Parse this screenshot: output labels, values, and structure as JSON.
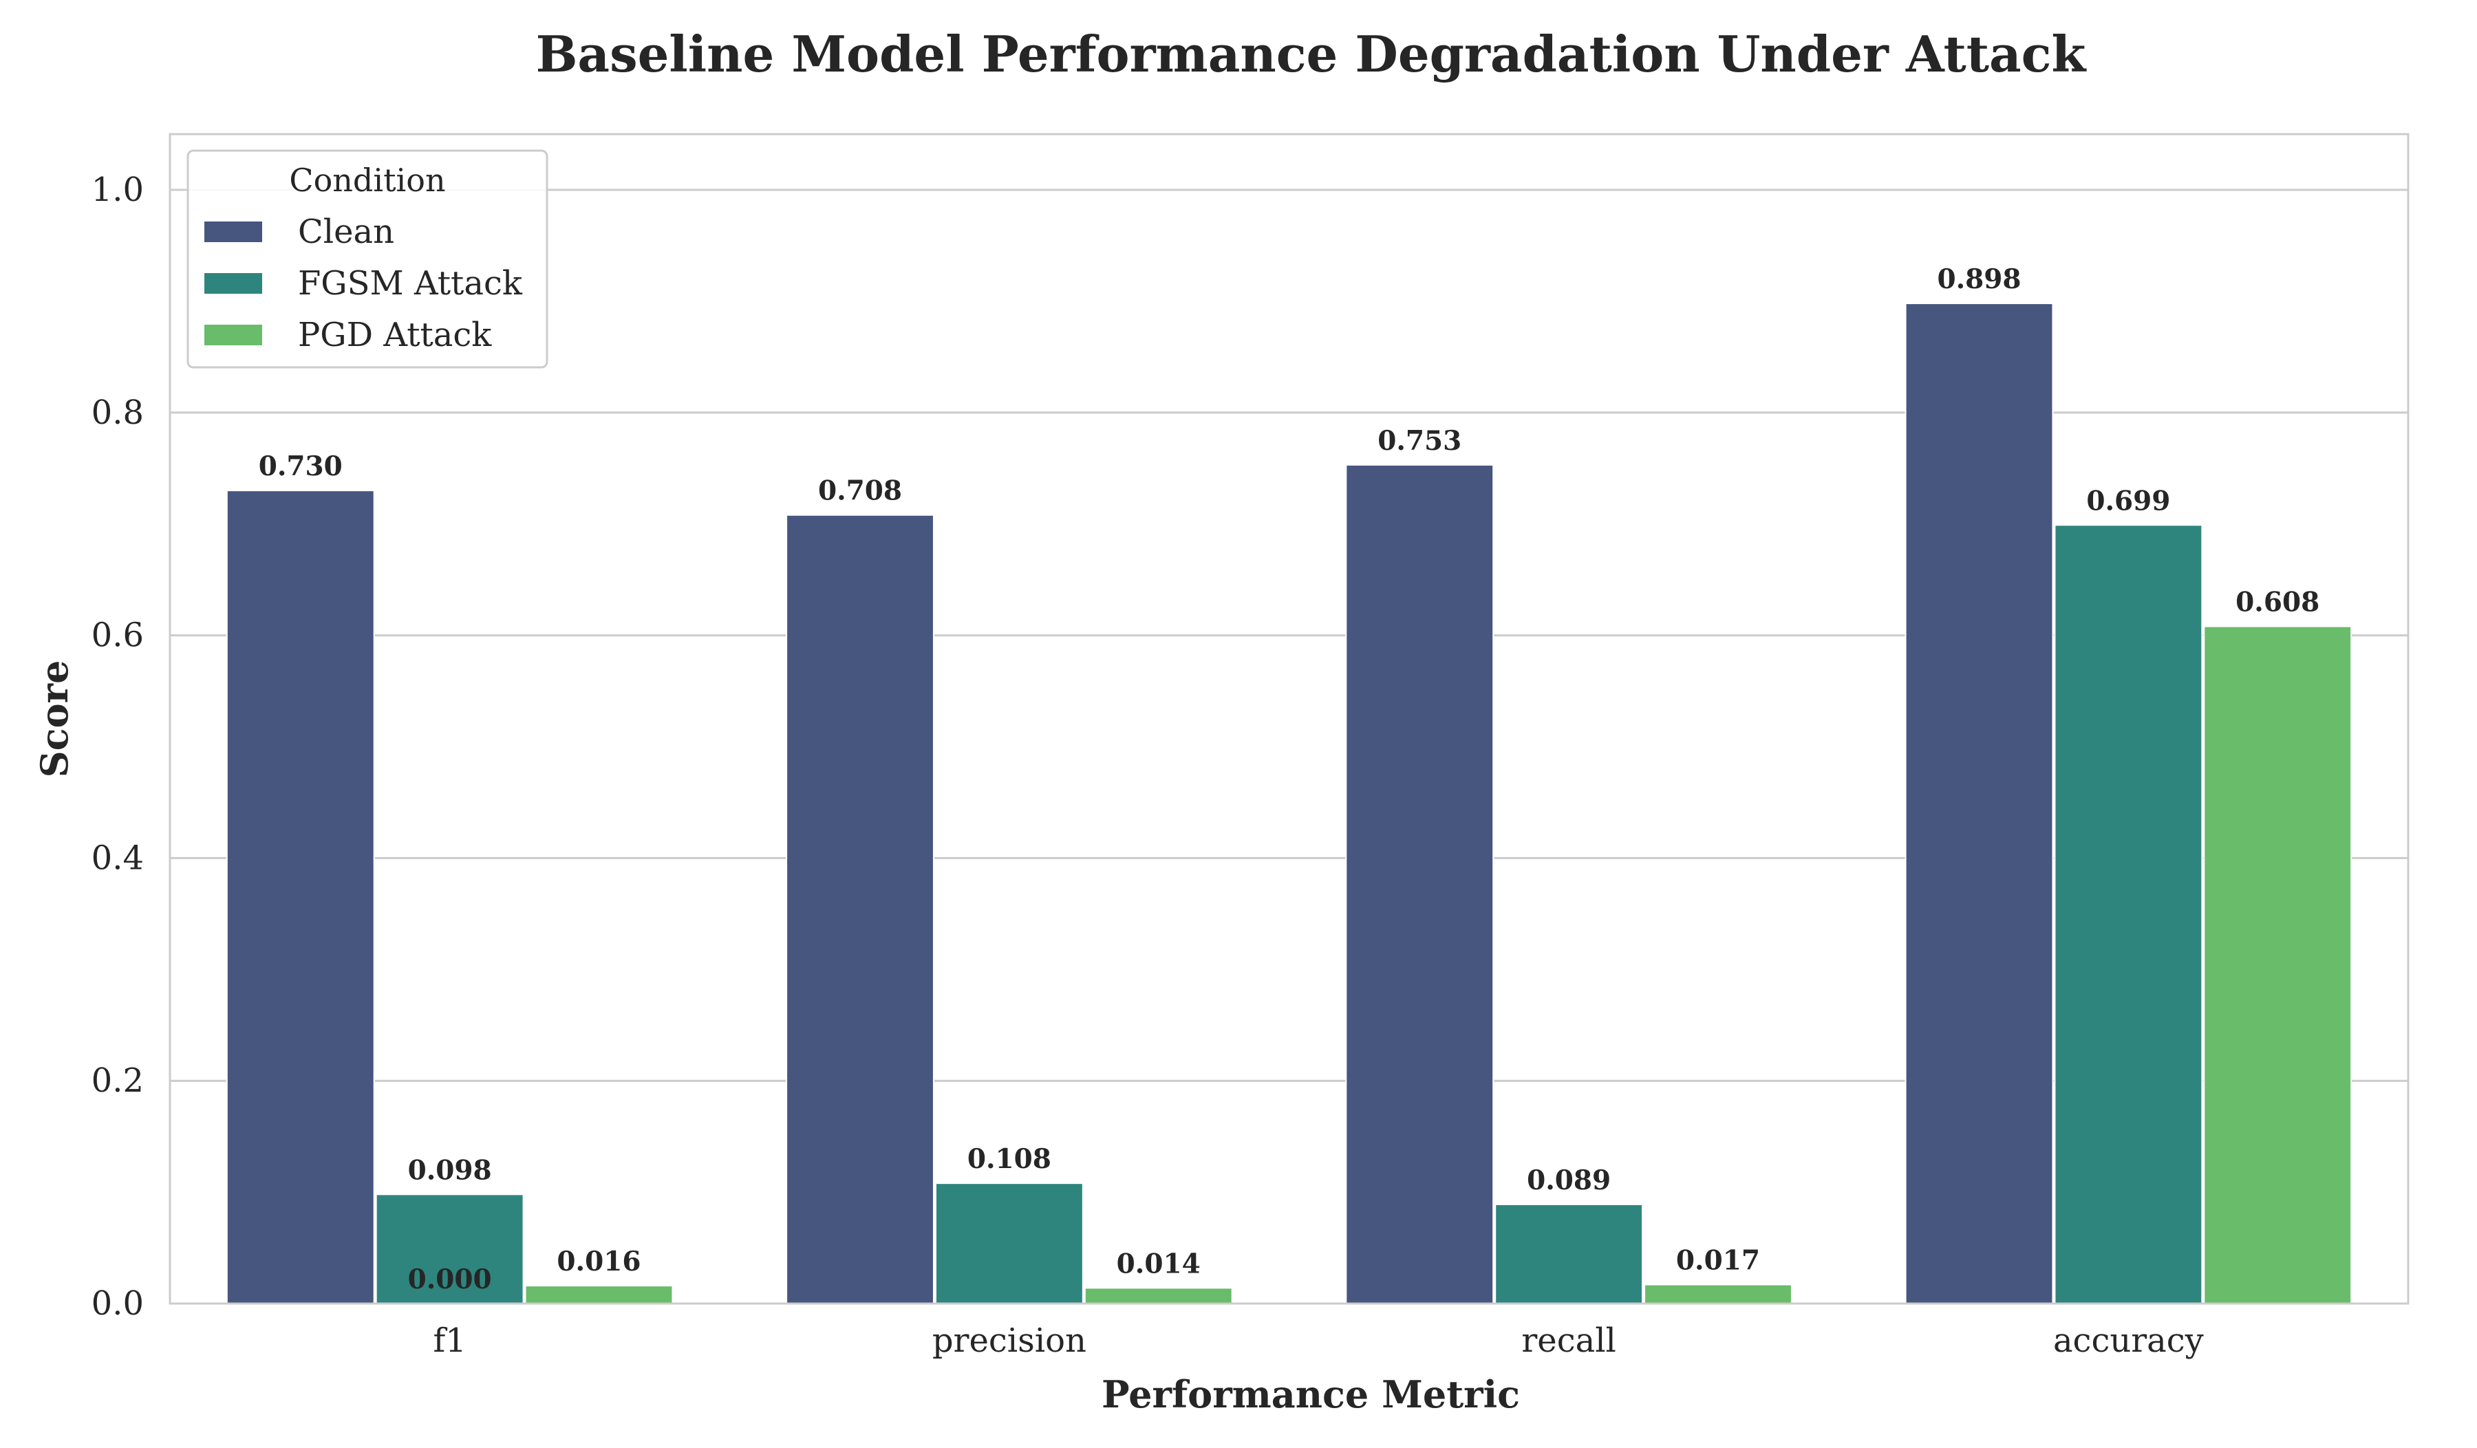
{
  "chart_data": {
    "type": "bar",
    "title": "Baseline Model Performance Degradation Under Attack",
    "xlabel": "Performance Metric",
    "ylabel": "Score",
    "categories": [
      "f1",
      "precision",
      "recall",
      "accuracy"
    ],
    "series": [
      {
        "name": "Clean",
        "color": "#46567f",
        "values": [
          0.73,
          0.708,
          0.753,
          0.898
        ]
      },
      {
        "name": "FGSM Attack",
        "color": "#2e857e",
        "values": [
          0.098,
          0.108,
          0.089,
          0.699
        ]
      },
      {
        "name": "PGD Attack",
        "color": "#69bc6a",
        "values": [
          0.016,
          0.014,
          0.017,
          0.608
        ]
      }
    ],
    "data_labels": [
      [
        "0.730",
        "0.708",
        "0.753",
        "0.898"
      ],
      [
        "0.098",
        "0.108",
        "0.089",
        "0.699"
      ],
      [
        "0.016",
        "0.014",
        "0.017",
        "0.608"
      ]
    ],
    "annotation": "0.000",
    "ylim": [
      0,
      1.05
    ],
    "yticks": [
      0.0,
      0.2,
      0.4,
      0.6,
      0.8,
      1.0
    ],
    "ytick_labels": [
      "0.0",
      "0.2",
      "0.4",
      "0.6",
      "0.8",
      "1.0"
    ],
    "grid": true,
    "legend": {
      "title": "Condition",
      "placement": "top-left"
    }
  }
}
